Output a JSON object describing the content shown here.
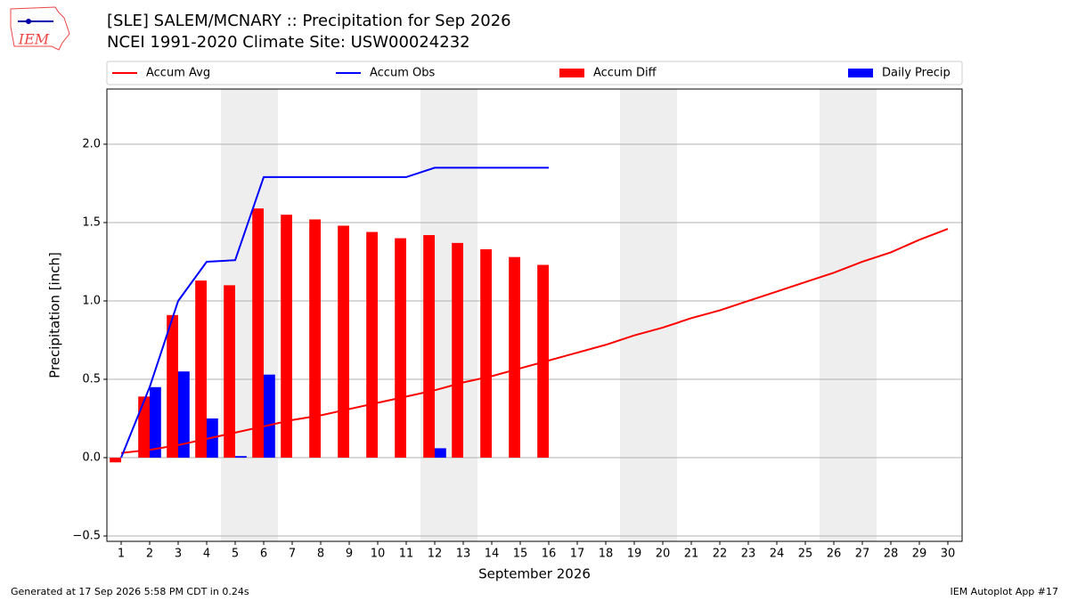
{
  "chart_data": {
    "type": "bar",
    "logo_text": "IEM",
    "title": "[SLE] SALEM/MCNARY :: Precipitation for Sep 2026",
    "subtitle": "NCEI 1991-2020 Climate Site: USW00024232",
    "xlabel": "September 2026",
    "ylabel": "Precipitation [inch]",
    "footer_left": "Generated at 17 Sep 2026 5:58 PM CDT in 0.24s",
    "footer_right": "IEM Autoplot App #17",
    "x": [
      1,
      2,
      3,
      4,
      5,
      6,
      7,
      8,
      9,
      10,
      11,
      12,
      13,
      14,
      15,
      16,
      17,
      18,
      19,
      20,
      21,
      22,
      23,
      24,
      25,
      26,
      27,
      28,
      29,
      30
    ],
    "xticks": [
      1,
      2,
      3,
      4,
      5,
      6,
      7,
      8,
      9,
      10,
      11,
      12,
      13,
      14,
      15,
      16,
      17,
      18,
      19,
      20,
      21,
      22,
      23,
      24,
      25,
      26,
      27,
      28,
      29,
      30
    ],
    "xlim": [
      0.5,
      30.5
    ],
    "ylim": [
      -0.534,
      2.352
    ],
    "yticks": [
      {
        "value": -0.5,
        "label": "−0.5"
      },
      {
        "value": 0,
        "label": "0.0"
      },
      {
        "value": 0.5,
        "label": "0.5"
      },
      {
        "value": 1,
        "label": "1.0"
      },
      {
        "value": 1.5,
        "label": "1.5"
      },
      {
        "value": 2,
        "label": "2.0"
      }
    ],
    "grid": true,
    "legend": "top",
    "shaded_spans": [
      [
        4.5,
        6.5
      ],
      [
        11.5,
        13.5
      ],
      [
        18.5,
        20.5
      ],
      [
        25.5,
        27.5
      ]
    ],
    "shade_color": "#eeeeee",
    "series": [
      {
        "name": "Accum Avg",
        "color": "#ff0000",
        "type": "line",
        "values": [
          0.03,
          0.05,
          0.08,
          0.12,
          0.16,
          0.2,
          0.24,
          0.27,
          0.31,
          0.35,
          0.39,
          0.43,
          0.48,
          0.52,
          0.57,
          0.62,
          0.67,
          0.72,
          0.78,
          0.83,
          0.89,
          0.94,
          1.0,
          1.06,
          1.12,
          1.18,
          1.25,
          1.31,
          1.39,
          1.46
        ]
      },
      {
        "name": "Accum Obs",
        "color": "#0000ff",
        "type": "line",
        "values": [
          0.0,
          0.45,
          1.0,
          1.25,
          1.26,
          1.79,
          1.79,
          1.79,
          1.79,
          1.79,
          1.79,
          1.85,
          1.85,
          1.85,
          1.85,
          1.85,
          null,
          null,
          null,
          null,
          null,
          null,
          null,
          null,
          null,
          null,
          null,
          null,
          null,
          null
        ]
      },
      {
        "name": "Accum Diff",
        "color": "#ff0000",
        "type": "bar",
        "offset": -1,
        "values": [
          -0.03,
          0.39,
          0.91,
          1.13,
          1.1,
          1.59,
          1.55,
          1.52,
          1.48,
          1.44,
          1.4,
          1.42,
          1.37,
          1.33,
          1.28,
          1.23,
          null,
          null,
          null,
          null,
          null,
          null,
          null,
          null,
          null,
          null,
          null,
          null,
          null,
          null
        ]
      },
      {
        "name": "Daily Precip",
        "color": "#0000ff",
        "type": "bar",
        "offset": 1,
        "values": [
          0,
          0.45,
          0.55,
          0.25,
          0.01,
          0.53,
          0,
          0,
          0,
          0,
          0,
          0.06,
          0,
          0,
          0,
          0,
          null,
          null,
          null,
          null,
          null,
          null,
          null,
          null,
          null,
          null,
          null,
          null,
          null,
          null
        ]
      }
    ]
  }
}
